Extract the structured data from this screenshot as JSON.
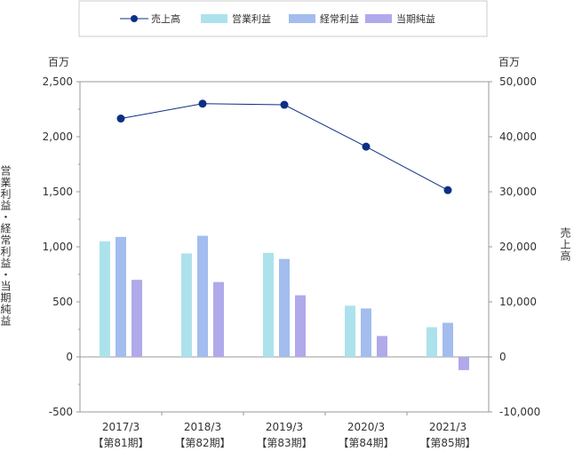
{
  "chart_data": {
    "type": "bar",
    "categories": [
      {
        "year": "2017/3",
        "period": "【第81期】"
      },
      {
        "year": "2018/3",
        "period": "【第82期】"
      },
      {
        "year": "2019/3",
        "period": "【第83期】"
      },
      {
        "year": "2020/3",
        "period": "【第84期】"
      },
      {
        "year": "2021/3",
        "period": "【第85期】"
      }
    ],
    "series": [
      {
        "name": "売上高",
        "kind": "line",
        "axis": "right",
        "color": "#0d2f84",
        "values": [
          43300,
          46000,
          45800,
          38200,
          30300
        ]
      },
      {
        "name": "営業利益",
        "kind": "bar",
        "axis": "left",
        "color": "#ace2ec",
        "values": [
          1050,
          940,
          945,
          465,
          270
        ]
      },
      {
        "name": "経常利益",
        "kind": "bar",
        "axis": "left",
        "color": "#a2bdee",
        "values": [
          1090,
          1100,
          890,
          440,
          310
        ]
      },
      {
        "name": "当期純益",
        "kind": "bar",
        "axis": "left",
        "color": "#b0a9ea",
        "values": [
          700,
          680,
          560,
          190,
          -120
        ]
      }
    ],
    "left_axis": {
      "unit": "百万",
      "label": "営業利益・経常利益・当期純益",
      "range": [
        -500,
        2500
      ],
      "ticks": [
        "-500",
        "0",
        "500",
        "1,000",
        "1,500",
        "2,000",
        "2,500"
      ]
    },
    "right_axis": {
      "unit": "百万",
      "label": "売上高",
      "range": [
        -10000,
        50000
      ],
      "ticks": [
        "-10,000",
        "0",
        "10,000",
        "20,000",
        "30,000",
        "40,000",
        "50,000"
      ]
    },
    "legend_position": "top",
    "grid": false
  }
}
